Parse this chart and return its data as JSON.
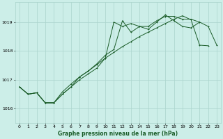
{
  "xlabel": "Graphe pression niveau de la mer (hPa)",
  "background_color": "#cceee8",
  "grid_color": "#aad4cc",
  "line_color": "#1a5c28",
  "x_ticks": [
    0,
    1,
    2,
    3,
    4,
    5,
    6,
    7,
    8,
    9,
    10,
    11,
    12,
    13,
    14,
    15,
    16,
    17,
    18,
    19,
    20,
    21,
    22,
    23
  ],
  "ylim": [
    1015.5,
    1019.7
  ],
  "xlim": [
    -0.5,
    23.5
  ],
  "yticks": [
    1016,
    1017,
    1018,
    1019
  ],
  "series1_x": [
    0,
    1,
    2,
    3,
    4,
    5,
    6,
    7,
    8,
    9,
    10,
    11,
    12,
    13,
    14,
    15,
    16,
    17,
    18,
    19,
    20,
    21,
    22,
    23
  ],
  "series1_y": [
    1016.75,
    1016.5,
    1016.55,
    1016.2,
    1016.2,
    1016.5,
    1016.75,
    1017.0,
    1017.2,
    1017.4,
    1017.75,
    1019.0,
    1018.85,
    1018.95,
    1018.85,
    1018.85,
    1019.05,
    1019.2,
    1019.2,
    1019.1,
    1019.1,
    1019.0,
    1018.85,
    1018.2
  ],
  "series2_x": [
    0,
    1,
    2,
    3,
    4,
    5,
    6,
    7,
    8,
    9,
    10,
    11,
    12,
    13,
    14,
    15,
    16,
    17,
    18,
    19,
    20,
    21
  ],
  "series2_y": [
    1016.75,
    1016.5,
    1016.55,
    1016.2,
    1016.2,
    1016.5,
    1016.75,
    1017.1,
    1017.3,
    1017.55,
    1017.85,
    1018.05,
    1019.05,
    1018.65,
    1018.85,
    1018.75,
    1019.0,
    1019.25,
    1019.05,
    1018.85,
    1018.8,
    1019.0
  ],
  "series3_x": [
    0,
    1,
    2,
    3,
    4,
    5,
    6,
    7,
    8,
    9,
    10,
    11,
    12,
    13,
    14,
    15,
    16,
    17,
    18,
    19,
    20,
    21,
    22
  ],
  "series3_y": [
    1016.75,
    1016.5,
    1016.55,
    1016.2,
    1016.2,
    1016.58,
    1016.85,
    1017.1,
    1017.3,
    1017.52,
    1017.75,
    1017.95,
    1018.15,
    1018.32,
    1018.5,
    1018.65,
    1018.8,
    1018.95,
    1019.1,
    1019.22,
    1019.08,
    1018.2,
    1018.18
  ]
}
